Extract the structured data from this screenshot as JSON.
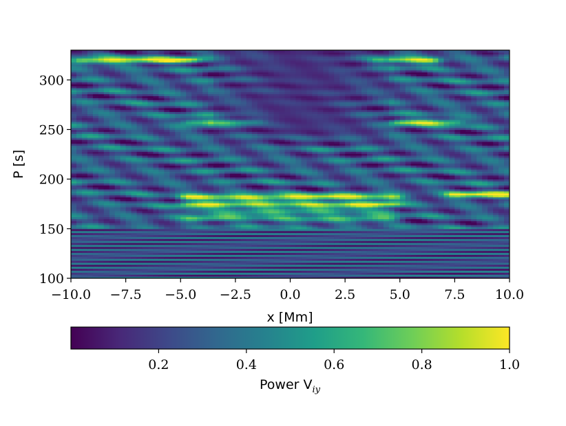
{
  "chart_data": {
    "type": "heatmap",
    "xlabel": "x [Mm]",
    "ylabel": "P [s]",
    "xlim": [
      -10,
      10
    ],
    "ylim": [
      100,
      330
    ],
    "x_ticks": [
      -10,
      -7.5,
      -5,
      -2.5,
      0,
      2.5,
      5,
      7.5,
      10
    ],
    "x_tick_labels": [
      "−10.0",
      "−7.5",
      "−5.0",
      "−2.5",
      "0.0",
      "2.5",
      "5.0",
      "7.5",
      "10.0"
    ],
    "y_ticks": [
      100,
      150,
      200,
      250,
      300
    ],
    "y_tick_labels": [
      "100",
      "150",
      "200",
      "250",
      "300"
    ],
    "colormap": "viridis",
    "colormap_stops": [
      "#440154",
      "#482878",
      "#3e4989",
      "#31688e",
      "#26828e",
      "#1f9e89",
      "#35b779",
      "#6ece58",
      "#b5de2b",
      "#fde725"
    ],
    "colorbar": {
      "label_main": "Power V",
      "label_sub": "iy",
      "range": [
        0,
        1
      ],
      "ticks": [
        0.2,
        0.4,
        0.6,
        0.8,
        1.0
      ],
      "tick_labels": [
        "0.2",
        "0.4",
        "0.6",
        "0.8",
        "1.0"
      ]
    },
    "features": {
      "bright_bands": [
        {
          "period": 182,
          "x_range": [
            -4.2,
            4.2
          ],
          "power": 0.95
        },
        {
          "period": 175,
          "x_range": [
            -4.2,
            4.2
          ],
          "power": 0.8
        },
        {
          "period": 168,
          "x_range": [
            -4,
            4
          ],
          "power": 0.7
        },
        {
          "period": 160,
          "x_range": [
            -4,
            4
          ],
          "power": 0.65
        },
        {
          "period": 258,
          "x_range": [
            -4,
            -2
          ],
          "power": 0.9
        },
        {
          "period": 320,
          "x_range": [
            -9,
            -5
          ],
          "power": 0.95
        },
        {
          "period": 320,
          "x_range": [
            4.5,
            6
          ],
          "power": 0.95
        },
        {
          "period": 258,
          "x_range": [
            5.5,
            7
          ],
          "power": 0.9
        },
        {
          "period": 185,
          "x_range": [
            8,
            9.5
          ],
          "power": 0.95
        }
      ],
      "dark_region": {
        "period_range": [
          230,
          330
        ],
        "x_range": [
          -2.5,
          3.5
        ],
        "power": 0.15
      }
    }
  }
}
